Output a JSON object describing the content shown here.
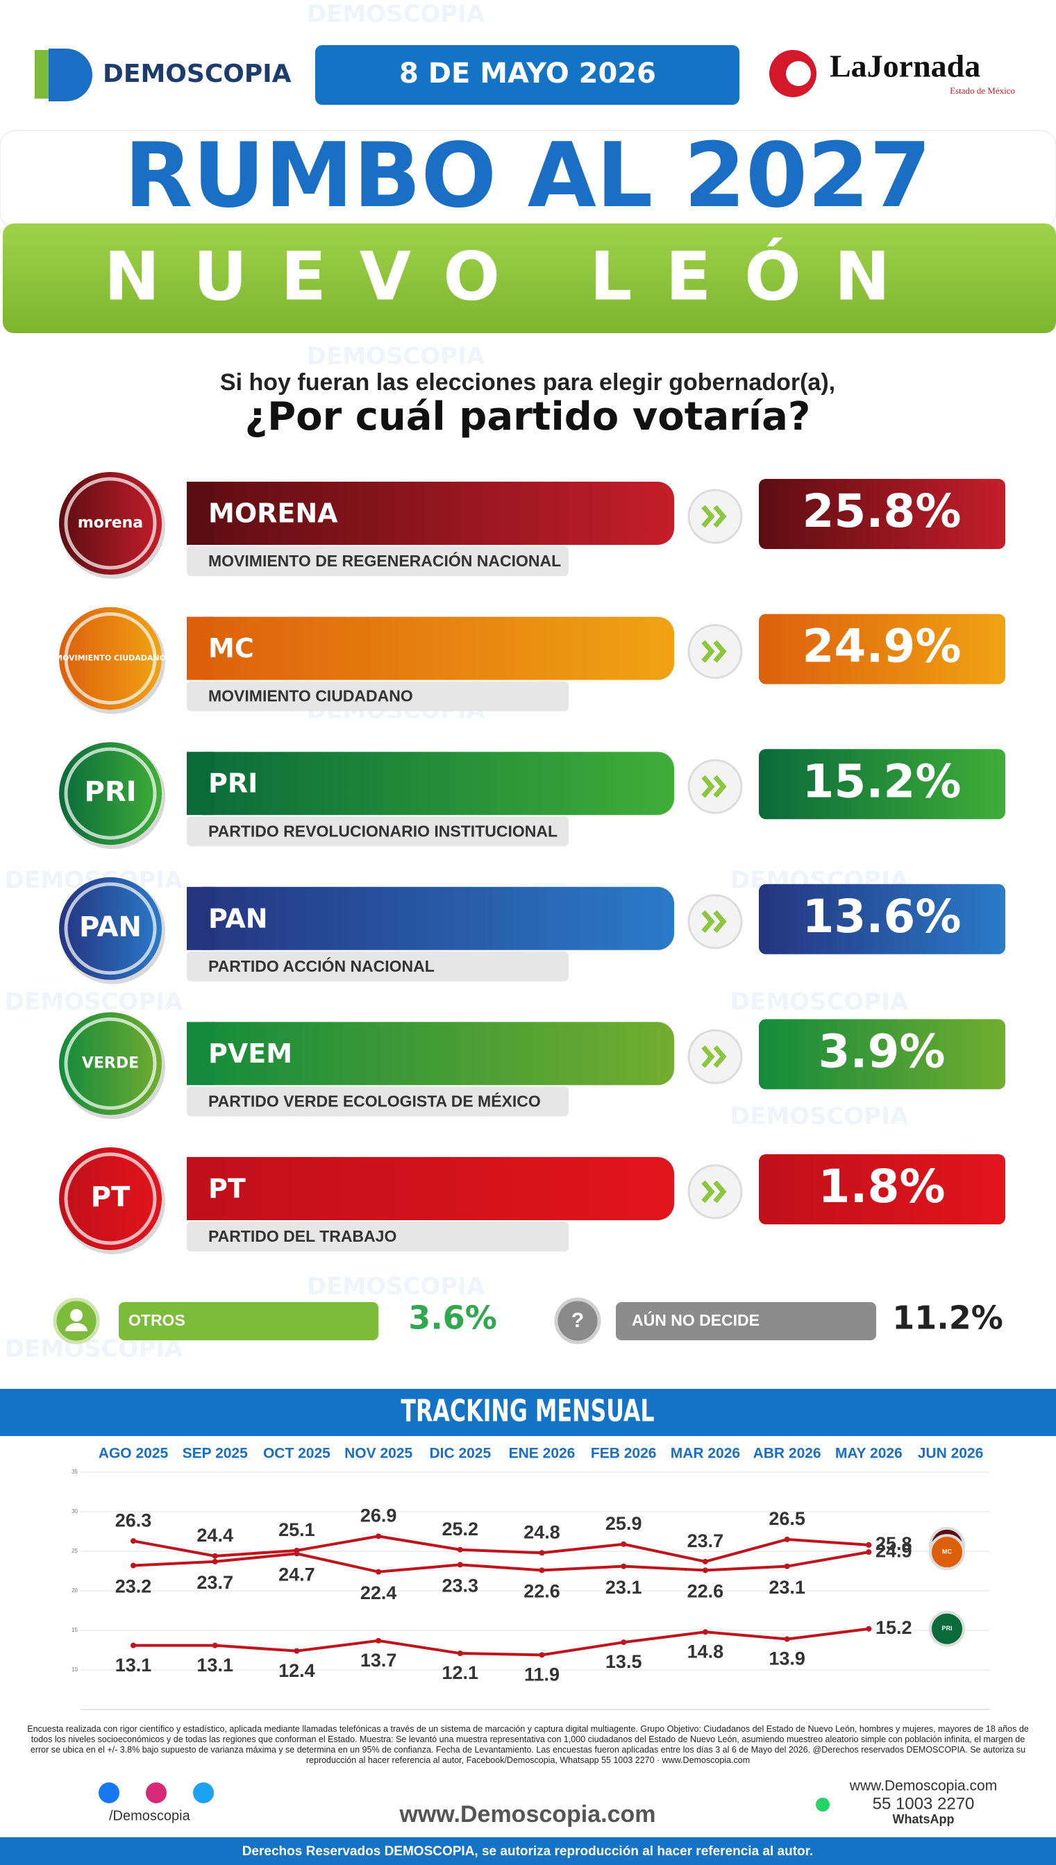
{
  "watermark": "DEMOSCOPIA",
  "header": {
    "brand": "DEMOSCOPIA",
    "date": "8 DE MAYO 2026",
    "partner": "LaJornada",
    "partner_sub": "Estado de México"
  },
  "title": "RUMBO AL 2027",
  "subtitle": "NUEVO LEÓN",
  "question": {
    "line1": "Si hoy fueran las elecciones para elegir gobernador(a),",
    "line2": "¿Por cuál partido votaría?"
  },
  "parties": [
    {
      "logo": "morena",
      "short": "MORENA",
      "name": "MOVIMIENTO DE REGENERACIÓN NACIONAL",
      "percent": "25.8%",
      "colors": [
        "#5c0d12",
        "#c41e2a"
      ]
    },
    {
      "logo": "MOVIMIENTO CIUDADANO",
      "short": "MC",
      "name": "MOVIMIENTO CIUDADANO",
      "percent": "24.9%",
      "colors": [
        "#dd5f0c",
        "#f0a313"
      ]
    },
    {
      "logo": "PRI",
      "short": "PRI",
      "name": "PARTIDO REVOLUCIONARIO INSTITUCIONAL",
      "percent": "15.2%",
      "colors": [
        "#0a6a3a",
        "#3fae38"
      ]
    },
    {
      "logo": "PAN",
      "short": "PAN",
      "name": "PARTIDO ACCIÓN NACIONAL",
      "percent": "13.6%",
      "colors": [
        "#25347f",
        "#2a7bc9"
      ]
    },
    {
      "logo": "VERDE",
      "short": "PVEM",
      "name": "PARTIDO VERDE ECOLOGISTA DE MÉXICO",
      "percent": "3.9%",
      "colors": [
        "#138a3c",
        "#72ad2f"
      ]
    },
    {
      "logo": "PT",
      "short": "PT",
      "name": "PARTIDO DEL TRABAJO",
      "percent": "1.8%",
      "colors": [
        "#c0101a",
        "#e2141c"
      ]
    }
  ],
  "others": {
    "label": "OTROS",
    "percent": "3.6%"
  },
  "undecided": {
    "label": "AÚN NO DECIDE",
    "percent": "11.2%"
  },
  "chart_data": {
    "type": "line",
    "title": "TRACKING MENSUAL",
    "categories": [
      "AGO 2025",
      "SEP 2025",
      "OCT 2025",
      "NOV 2025",
      "DIC 2025",
      "ENE 2026",
      "FEB 2026",
      "MAR 2026",
      "ABR 2026",
      "MAY 2026",
      "JUN 2026"
    ],
    "series": [
      {
        "name": "morena",
        "color": "#c0141c",
        "values": [
          26.3,
          24.4,
          25.1,
          26.9,
          25.2,
          24.8,
          25.9,
          23.7,
          26.5,
          25.8,
          null
        ]
      },
      {
        "name": "MC",
        "color": "#c0141c",
        "values": [
          23.2,
          23.7,
          24.7,
          22.4,
          23.3,
          22.6,
          23.1,
          22.6,
          23.1,
          24.9,
          null
        ]
      },
      {
        "name": "PRI",
        "color": "#c0141c",
        "values": [
          13.1,
          13.1,
          12.4,
          13.7,
          12.1,
          11.9,
          13.5,
          14.8,
          13.9,
          15.2,
          null
        ]
      }
    ],
    "ylim": [
      5,
      35
    ],
    "yticks": [
      10,
      15,
      20,
      25,
      30,
      35
    ],
    "grid": true
  },
  "footer": {
    "disclaimer": "Encuesta realizada con rigor científico y estadístico, aplicada mediante llamadas telefónicas a través de un sistema de marcación y captura digital multiagente. Grupo Objetivo: Ciudadanos del Estado de Nuevo León, hombres y mujeres, mayores de 18 años de todos los niveles socioeconómicos y de todas las regiones que conforman el Estado. Muestra: Se levantó una muestra representativa con 1,000 ciudadanos del Estado de Nuevo León, asumiendo muestreo aleatorio simple con población infinita, el margen de error se ubica en el +/- 3.8% bajo supuesto de varianza máxima y se determina en un 95% de confianza. Fecha de Levantamiento. Las encuestas fueron aplicadas entre los días 3 al 6 de Mayo del 2026. @Derechos reservados DEMOSCOPIA. Se autoriza su reproducción al hacer referencia al autor, Facebook/Demoscopia, Whatsapp 55 1003 2270 · www.Demoscopia.com",
    "social": "/Demoscopia",
    "website": "www.Demoscopia.com",
    "site_small": "www.Demoscopia.com",
    "phone": "55 1003 2270",
    "whatsapp": "WhatsApp",
    "rights": "Derechos Reservados DEMOSCOPIA, se autoriza reproducción al hacer referencia al autor."
  }
}
